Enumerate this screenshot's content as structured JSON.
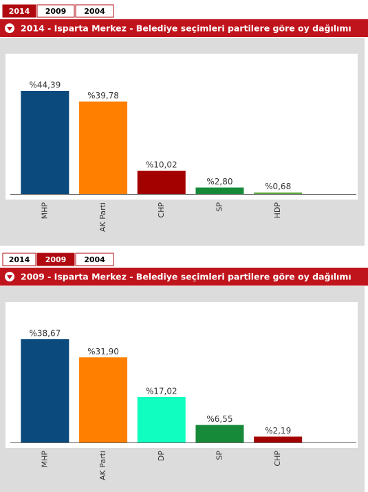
{
  "chart_data": [
    {
      "type": "bar",
      "tabs": [
        "2014",
        "2009",
        "2004"
      ],
      "active_tab": 0,
      "title": "2014 - Isparta Merkez - Belediye seçimleri partilere göre oy dağılımı",
      "categories": [
        "MHP",
        "AK Parti",
        "CHP",
        "SP",
        "HDP"
      ],
      "values": [
        44.39,
        39.78,
        10.02,
        2.8,
        0.68
      ],
      "value_labels": [
        "%44,39",
        "%39,78",
        "%10,02",
        "%2,80",
        "%0,68"
      ],
      "colors": [
        "#0b4a7c",
        "#ff7f00",
        "#a30000",
        "#178a3a",
        "#5aa63a"
      ]
    },
    {
      "type": "bar",
      "tabs": [
        "2014",
        "2009",
        "2004"
      ],
      "active_tab": 1,
      "title": "2009 - Isparta Merkez - Belediye seçimleri partilere göre oy dağılımı",
      "categories": [
        "MHP",
        "AK Parti",
        "DP",
        "SP",
        "CHP"
      ],
      "values": [
        38.67,
        31.9,
        17.02,
        6.55,
        2.19
      ],
      "value_labels": [
        "%38,67",
        "%31,90",
        "%17,02",
        "%6,55",
        "%2,19"
      ],
      "colors": [
        "#0b4a7c",
        "#ff7f00",
        "#10ffc0",
        "#178a3a",
        "#a30000"
      ]
    }
  ]
}
